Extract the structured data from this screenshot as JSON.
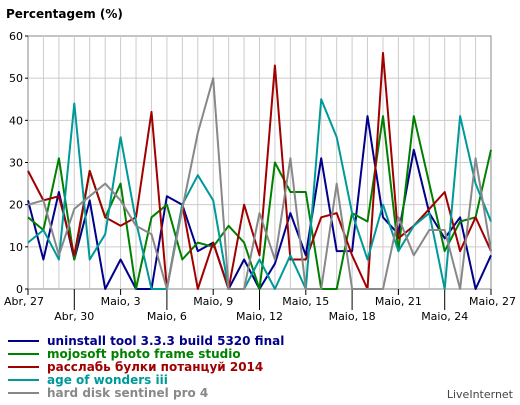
{
  "chart_data": {
    "type": "line",
    "ylabel": "Percentagem (%)",
    "ylim": [
      0,
      60
    ],
    "yticks": [
      "0",
      "10",
      "20",
      "30",
      "40",
      "50",
      "60"
    ],
    "x": [
      0,
      1,
      2,
      3,
      4,
      5,
      6,
      7,
      8,
      9,
      10,
      11,
      12,
      13,
      14,
      15,
      16,
      17,
      18,
      19,
      20,
      21,
      22,
      23,
      24,
      25,
      26,
      27,
      28,
      29,
      30
    ],
    "xtick_labels": [
      {
        "index": 0,
        "label": "Abr, 27",
        "row": 1
      },
      {
        "index": 3,
        "label": "Abr, 30",
        "row": 2
      },
      {
        "index": 6,
        "label": "Maio, 3",
        "row": 1
      },
      {
        "index": 9,
        "label": "Maio, 6",
        "row": 2
      },
      {
        "index": 12,
        "label": "Maio, 9",
        "row": 1
      },
      {
        "index": 15,
        "label": "Maio, 12",
        "row": 2
      },
      {
        "index": 18,
        "label": "Maio, 15",
        "row": 1
      },
      {
        "index": 21,
        "label": "Maio, 18",
        "row": 2
      },
      {
        "index": 24,
        "label": "Maio, 21",
        "row": 1
      },
      {
        "index": 27,
        "label": "Maio, 24",
        "row": 2
      },
      {
        "index": 30,
        "label": "Maio, 27",
        "row": 1
      }
    ],
    "grid": true,
    "legend_position": "bottom-left",
    "series": [
      {
        "name": "uninstall tool 3.3.3 build 5320 final",
        "color": "#00008b",
        "values": [
          21,
          7,
          23,
          7,
          21,
          0,
          7,
          0,
          0,
          22,
          20,
          9,
          11,
          0,
          7,
          0,
          6,
          18,
          8,
          31,
          9,
          9,
          41,
          17,
          13,
          33,
          18,
          12,
          17,
          0,
          8
        ]
      },
      {
        "name": "mojosoft photo frame studio",
        "color": "#008000",
        "values": [
          17,
          14,
          31,
          7,
          28,
          17,
          25,
          0,
          17,
          20,
          7,
          11,
          10,
          15,
          11,
          0,
          30,
          23,
          23,
          0,
          0,
          18,
          16,
          41,
          9,
          41,
          25,
          9,
          16,
          17,
          33
        ]
      },
      {
        "name": "расслабь булки потанцуй 2014",
        "color": "#a00000",
        "values": [
          28,
          21,
          22,
          8,
          28,
          17,
          15,
          17,
          42,
          0,
          20,
          0,
          11,
          0,
          20,
          8,
          53,
          7,
          7,
          17,
          18,
          8,
          0,
          56,
          12,
          15,
          19,
          23,
          9,
          17,
          9
        ]
      },
      {
        "name": "age of wonders iii",
        "color": "#009999",
        "values": [
          11,
          14,
          7,
          44,
          7,
          13,
          36,
          16,
          0,
          0,
          20,
          27,
          21,
          0,
          0,
          7,
          0,
          8,
          0,
          45,
          36,
          18,
          7,
          20,
          9,
          15,
          18,
          0,
          41,
          25,
          16
        ]
      },
      {
        "name": "hard disk sentinel pro 4",
        "color": "#888888",
        "values": [
          20,
          21,
          8,
          19,
          22,
          25,
          21,
          15,
          13,
          0,
          19,
          37,
          50,
          0,
          0,
          18,
          7,
          31,
          0,
          0,
          25,
          0,
          0,
          0,
          17,
          8,
          14,
          14,
          0,
          31,
          9
        ]
      }
    ]
  },
  "watermark": "LiveInternet"
}
